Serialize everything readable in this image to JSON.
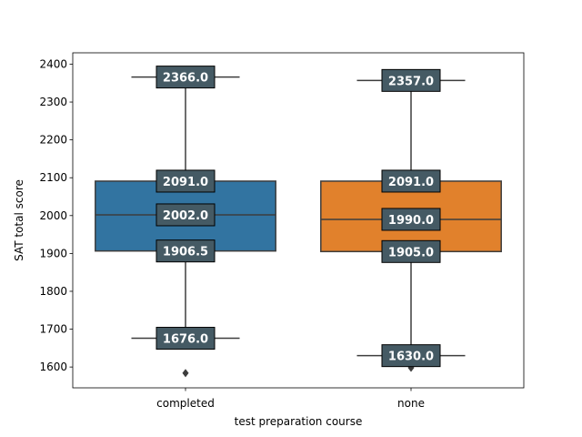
{
  "chart_data": {
    "type": "box",
    "xlabel": "test preparation course",
    "ylabel": "SAT total score",
    "categories": [
      "completed",
      "none"
    ],
    "ylim": [
      1545,
      2430
    ],
    "yticks": [
      1600,
      1700,
      1800,
      1900,
      2000,
      2100,
      2200,
      2300,
      2400
    ],
    "ytick_labels": [
      "1600",
      "1700",
      "1800",
      "1900",
      "2000",
      "2100",
      "2200",
      "2300",
      "2400"
    ],
    "boxes": [
      {
        "category": "completed",
        "whisker_low": 1676.0,
        "q1": 1906.5,
        "median": 2002.0,
        "q3": 2091.0,
        "whisker_high": 2366.0,
        "outliers": [
          1584
        ],
        "color": "#3274a1",
        "labels": {
          "whisker_high": "2366.0",
          "q3": "2091.0",
          "median": "2002.0",
          "q1": "1906.5",
          "whisker_low": "1676.0"
        }
      },
      {
        "category": "none",
        "whisker_low": 1630.0,
        "q1": 1905.0,
        "median": 1990.0,
        "q3": 2091.0,
        "whisker_high": 2357.0,
        "outliers": [
          1598
        ],
        "color": "#e1812c",
        "labels": {
          "whisker_high": "2357.0",
          "q3": "2091.0",
          "median": "1990.0",
          "q1": "1905.0",
          "whisker_low": "1630.0"
        }
      }
    ],
    "label_box_color": "#455a64",
    "grid": false,
    "legend": "none"
  }
}
